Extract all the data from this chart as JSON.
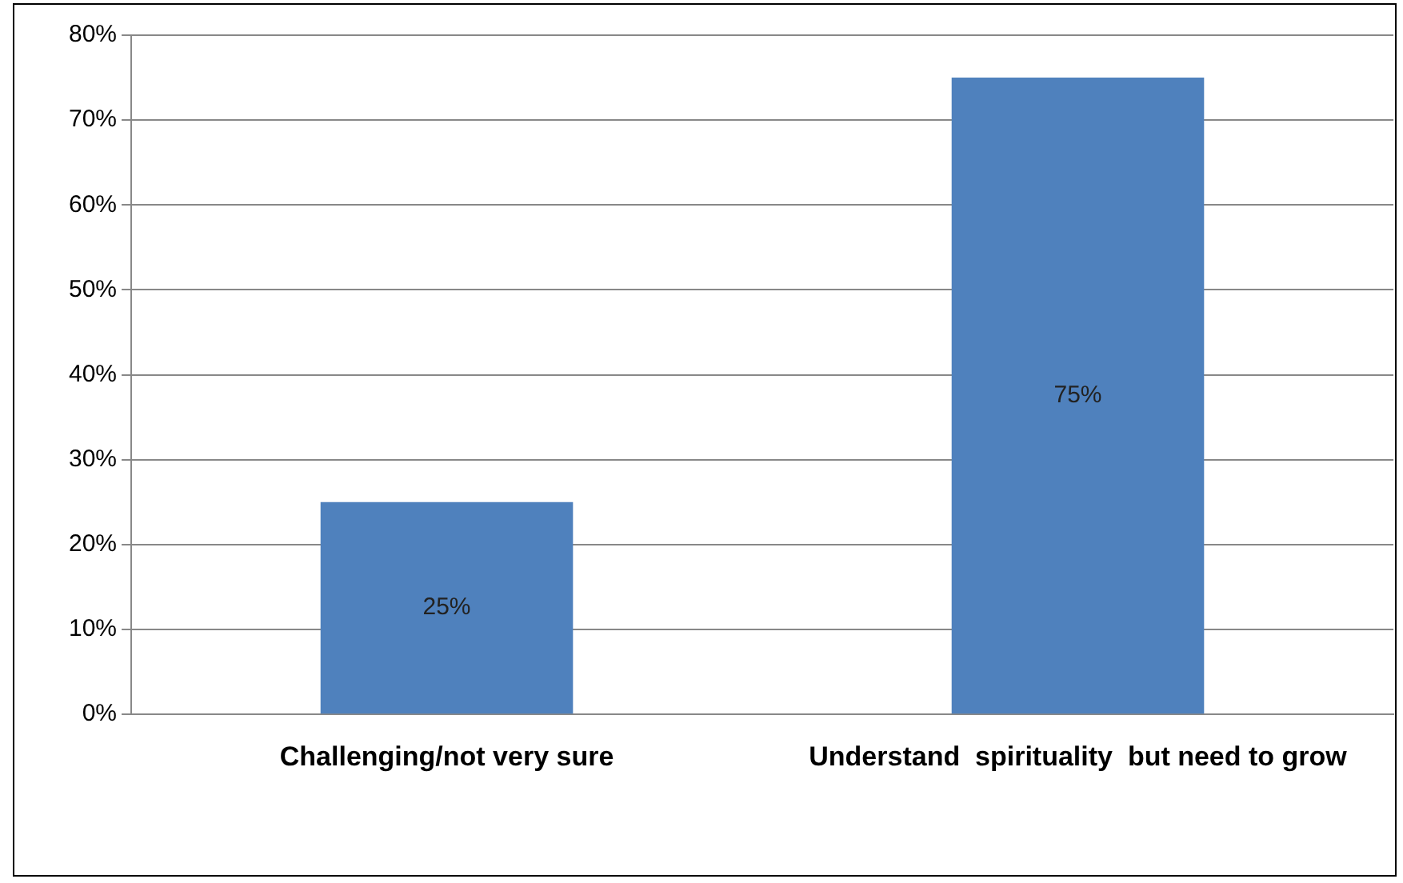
{
  "chart_data": {
    "type": "bar",
    "categories": [
      "Challenging/not very sure",
      "Understand  spirituality  but need to grow"
    ],
    "values": [
      25,
      75
    ],
    "color": "#4f81bd",
    "value_labels": [
      "25%",
      "75%"
    ],
    "ylim": [
      0,
      80
    ],
    "yticks": [
      {
        "value": 0,
        "label": "0%"
      },
      {
        "value": 10,
        "label": "10%"
      },
      {
        "value": 20,
        "label": "20%"
      },
      {
        "value": 30,
        "label": "30%"
      },
      {
        "value": 40,
        "label": "40%"
      },
      {
        "value": 50,
        "label": "50%"
      },
      {
        "value": 60,
        "label": "60%"
      },
      {
        "value": 70,
        "label": "70%"
      },
      {
        "value": 80,
        "label": "80%"
      }
    ],
    "grid": "y",
    "legend": false
  }
}
